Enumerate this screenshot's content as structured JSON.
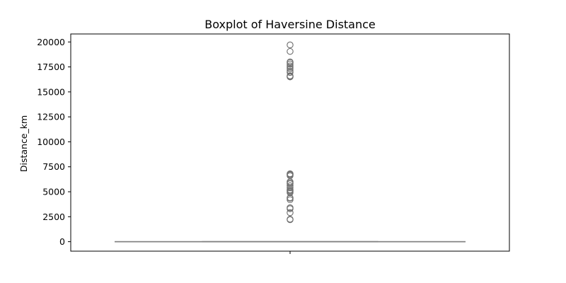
{
  "chart_data": {
    "type": "boxplot",
    "title": "Boxplot of Haversine Distance",
    "xlabel": "",
    "ylabel": "Distance_km",
    "ylim": [
      -950,
      20800
    ],
    "yticks": [
      0,
      2500,
      5000,
      7500,
      10000,
      12500,
      15000,
      17500,
      20000
    ],
    "grid": false,
    "box": {
      "q1": 0,
      "median": 0,
      "q3": 0,
      "whisker_low": 0,
      "whisker_high": 0,
      "color": "#808080"
    },
    "outliers": [
      2200,
      2250,
      2900,
      3300,
      3400,
      4200,
      4350,
      4400,
      4900,
      5000,
      5100,
      5200,
      5400,
      5600,
      5800,
      5900,
      6000,
      6600,
      6700,
      6750,
      6800,
      16500,
      16550,
      16600,
      16950,
      17100,
      17300,
      17450,
      17600,
      17800,
      17950,
      18000,
      19050,
      19700
    ]
  }
}
